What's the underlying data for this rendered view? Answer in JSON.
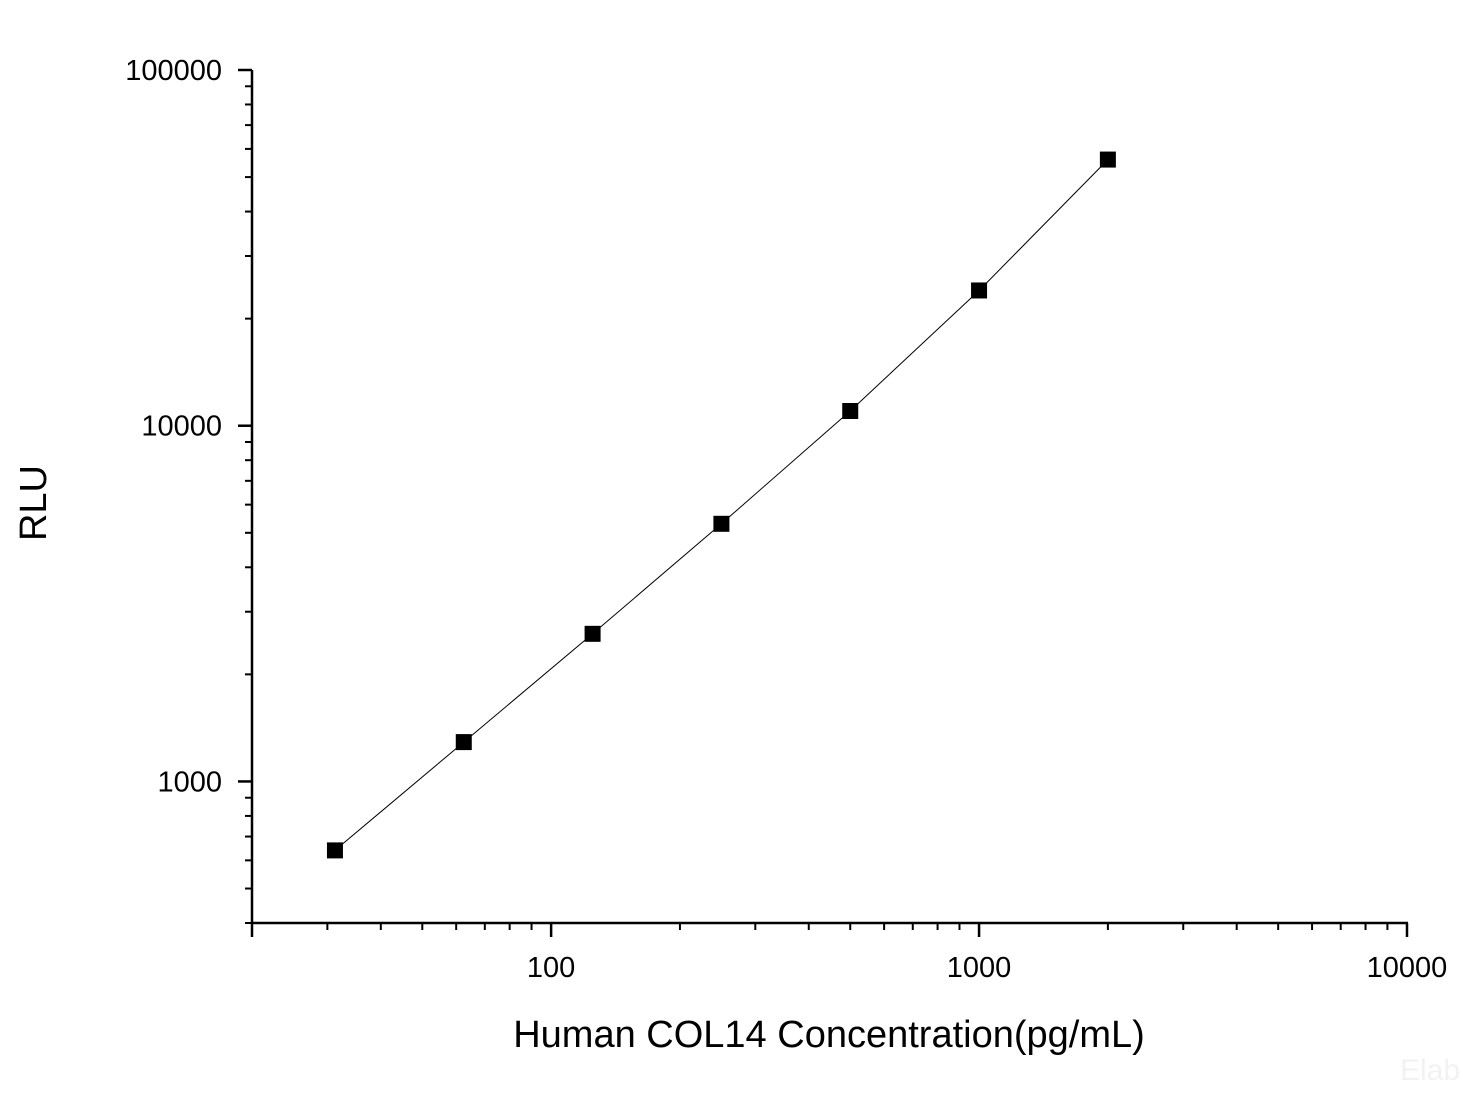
{
  "chart_data": {
    "type": "line",
    "xlabel": "Human COL14 Concentration(pg/mL)",
    "ylabel": "RLU",
    "x_scale": "log",
    "y_scale": "log",
    "xlim": [
      20,
      10000
    ],
    "ylim": [
      400,
      100000
    ],
    "x_ticks": [
      {
        "value": 100,
        "label": "100"
      },
      {
        "value": 1000,
        "label": "1000"
      },
      {
        "value": 10000,
        "label": "10000"
      }
    ],
    "y_ticks": [
      {
        "value": 1000,
        "label": "1000"
      },
      {
        "value": 10000,
        "label": "10000"
      },
      {
        "value": 100000,
        "label": "100000"
      }
    ],
    "grid": false,
    "legend": "none",
    "marker": "square",
    "series": [
      {
        "x": [
          31.25,
          62.5,
          125,
          250,
          500,
          1000,
          2000
        ],
        "y": [
          640,
          1290,
          2600,
          5300,
          11000,
          24000,
          56000
        ]
      }
    ],
    "watermark": "Elab",
    "colors": {
      "marker": "#000000",
      "line": "#000000",
      "axis": "#000000"
    }
  }
}
